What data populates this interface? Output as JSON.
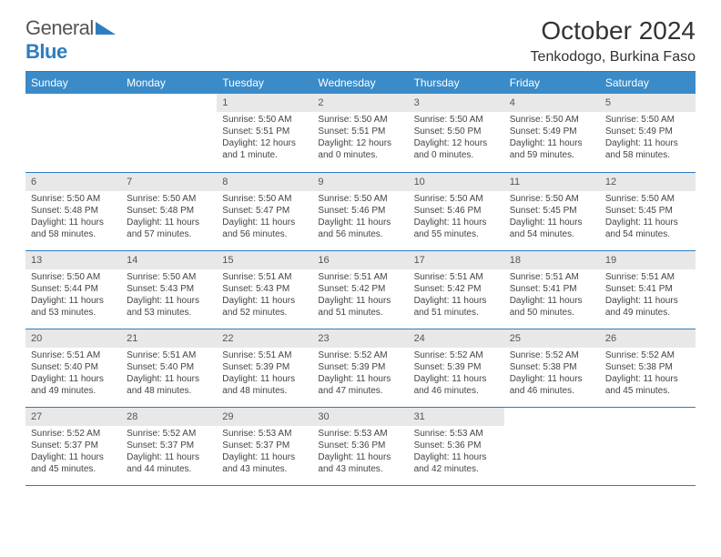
{
  "logo": {
    "word1": "General",
    "word2": "Blue",
    "shape_color": "#2d7dc0"
  },
  "title": "October 2024",
  "location": "Tenkodogo, Burkina Faso",
  "colors": {
    "header_bg": "#3a8bc8",
    "header_text": "#ffffff",
    "row_divider": "#2d7dc0",
    "daynum_bg": "#e8e8e8",
    "body_text": "#444444"
  },
  "day_headers": [
    "Sunday",
    "Monday",
    "Tuesday",
    "Wednesday",
    "Thursday",
    "Friday",
    "Saturday"
  ],
  "weeks": [
    [
      {
        "n": "",
        "sr": "",
        "ss": "",
        "dl": ""
      },
      {
        "n": "",
        "sr": "",
        "ss": "",
        "dl": ""
      },
      {
        "n": "1",
        "sr": "Sunrise: 5:50 AM",
        "ss": "Sunset: 5:51 PM",
        "dl": "Daylight: 12 hours and 1 minute."
      },
      {
        "n": "2",
        "sr": "Sunrise: 5:50 AM",
        "ss": "Sunset: 5:51 PM",
        "dl": "Daylight: 12 hours and 0 minutes."
      },
      {
        "n": "3",
        "sr": "Sunrise: 5:50 AM",
        "ss": "Sunset: 5:50 PM",
        "dl": "Daylight: 12 hours and 0 minutes."
      },
      {
        "n": "4",
        "sr": "Sunrise: 5:50 AM",
        "ss": "Sunset: 5:49 PM",
        "dl": "Daylight: 11 hours and 59 minutes."
      },
      {
        "n": "5",
        "sr": "Sunrise: 5:50 AM",
        "ss": "Sunset: 5:49 PM",
        "dl": "Daylight: 11 hours and 58 minutes."
      }
    ],
    [
      {
        "n": "6",
        "sr": "Sunrise: 5:50 AM",
        "ss": "Sunset: 5:48 PM",
        "dl": "Daylight: 11 hours and 58 minutes."
      },
      {
        "n": "7",
        "sr": "Sunrise: 5:50 AM",
        "ss": "Sunset: 5:48 PM",
        "dl": "Daylight: 11 hours and 57 minutes."
      },
      {
        "n": "8",
        "sr": "Sunrise: 5:50 AM",
        "ss": "Sunset: 5:47 PM",
        "dl": "Daylight: 11 hours and 56 minutes."
      },
      {
        "n": "9",
        "sr": "Sunrise: 5:50 AM",
        "ss": "Sunset: 5:46 PM",
        "dl": "Daylight: 11 hours and 56 minutes."
      },
      {
        "n": "10",
        "sr": "Sunrise: 5:50 AM",
        "ss": "Sunset: 5:46 PM",
        "dl": "Daylight: 11 hours and 55 minutes."
      },
      {
        "n": "11",
        "sr": "Sunrise: 5:50 AM",
        "ss": "Sunset: 5:45 PM",
        "dl": "Daylight: 11 hours and 54 minutes."
      },
      {
        "n": "12",
        "sr": "Sunrise: 5:50 AM",
        "ss": "Sunset: 5:45 PM",
        "dl": "Daylight: 11 hours and 54 minutes."
      }
    ],
    [
      {
        "n": "13",
        "sr": "Sunrise: 5:50 AM",
        "ss": "Sunset: 5:44 PM",
        "dl": "Daylight: 11 hours and 53 minutes."
      },
      {
        "n": "14",
        "sr": "Sunrise: 5:50 AM",
        "ss": "Sunset: 5:43 PM",
        "dl": "Daylight: 11 hours and 53 minutes."
      },
      {
        "n": "15",
        "sr": "Sunrise: 5:51 AM",
        "ss": "Sunset: 5:43 PM",
        "dl": "Daylight: 11 hours and 52 minutes."
      },
      {
        "n": "16",
        "sr": "Sunrise: 5:51 AM",
        "ss": "Sunset: 5:42 PM",
        "dl": "Daylight: 11 hours and 51 minutes."
      },
      {
        "n": "17",
        "sr": "Sunrise: 5:51 AM",
        "ss": "Sunset: 5:42 PM",
        "dl": "Daylight: 11 hours and 51 minutes."
      },
      {
        "n": "18",
        "sr": "Sunrise: 5:51 AM",
        "ss": "Sunset: 5:41 PM",
        "dl": "Daylight: 11 hours and 50 minutes."
      },
      {
        "n": "19",
        "sr": "Sunrise: 5:51 AM",
        "ss": "Sunset: 5:41 PM",
        "dl": "Daylight: 11 hours and 49 minutes."
      }
    ],
    [
      {
        "n": "20",
        "sr": "Sunrise: 5:51 AM",
        "ss": "Sunset: 5:40 PM",
        "dl": "Daylight: 11 hours and 49 minutes."
      },
      {
        "n": "21",
        "sr": "Sunrise: 5:51 AM",
        "ss": "Sunset: 5:40 PM",
        "dl": "Daylight: 11 hours and 48 minutes."
      },
      {
        "n": "22",
        "sr": "Sunrise: 5:51 AM",
        "ss": "Sunset: 5:39 PM",
        "dl": "Daylight: 11 hours and 48 minutes."
      },
      {
        "n": "23",
        "sr": "Sunrise: 5:52 AM",
        "ss": "Sunset: 5:39 PM",
        "dl": "Daylight: 11 hours and 47 minutes."
      },
      {
        "n": "24",
        "sr": "Sunrise: 5:52 AM",
        "ss": "Sunset: 5:39 PM",
        "dl": "Daylight: 11 hours and 46 minutes."
      },
      {
        "n": "25",
        "sr": "Sunrise: 5:52 AM",
        "ss": "Sunset: 5:38 PM",
        "dl": "Daylight: 11 hours and 46 minutes."
      },
      {
        "n": "26",
        "sr": "Sunrise: 5:52 AM",
        "ss": "Sunset: 5:38 PM",
        "dl": "Daylight: 11 hours and 45 minutes."
      }
    ],
    [
      {
        "n": "27",
        "sr": "Sunrise: 5:52 AM",
        "ss": "Sunset: 5:37 PM",
        "dl": "Daylight: 11 hours and 45 minutes."
      },
      {
        "n": "28",
        "sr": "Sunrise: 5:52 AM",
        "ss": "Sunset: 5:37 PM",
        "dl": "Daylight: 11 hours and 44 minutes."
      },
      {
        "n": "29",
        "sr": "Sunrise: 5:53 AM",
        "ss": "Sunset: 5:37 PM",
        "dl": "Daylight: 11 hours and 43 minutes."
      },
      {
        "n": "30",
        "sr": "Sunrise: 5:53 AM",
        "ss": "Sunset: 5:36 PM",
        "dl": "Daylight: 11 hours and 43 minutes."
      },
      {
        "n": "31",
        "sr": "Sunrise: 5:53 AM",
        "ss": "Sunset: 5:36 PM",
        "dl": "Daylight: 11 hours and 42 minutes."
      },
      {
        "n": "",
        "sr": "",
        "ss": "",
        "dl": ""
      },
      {
        "n": "",
        "sr": "",
        "ss": "",
        "dl": ""
      }
    ]
  ]
}
